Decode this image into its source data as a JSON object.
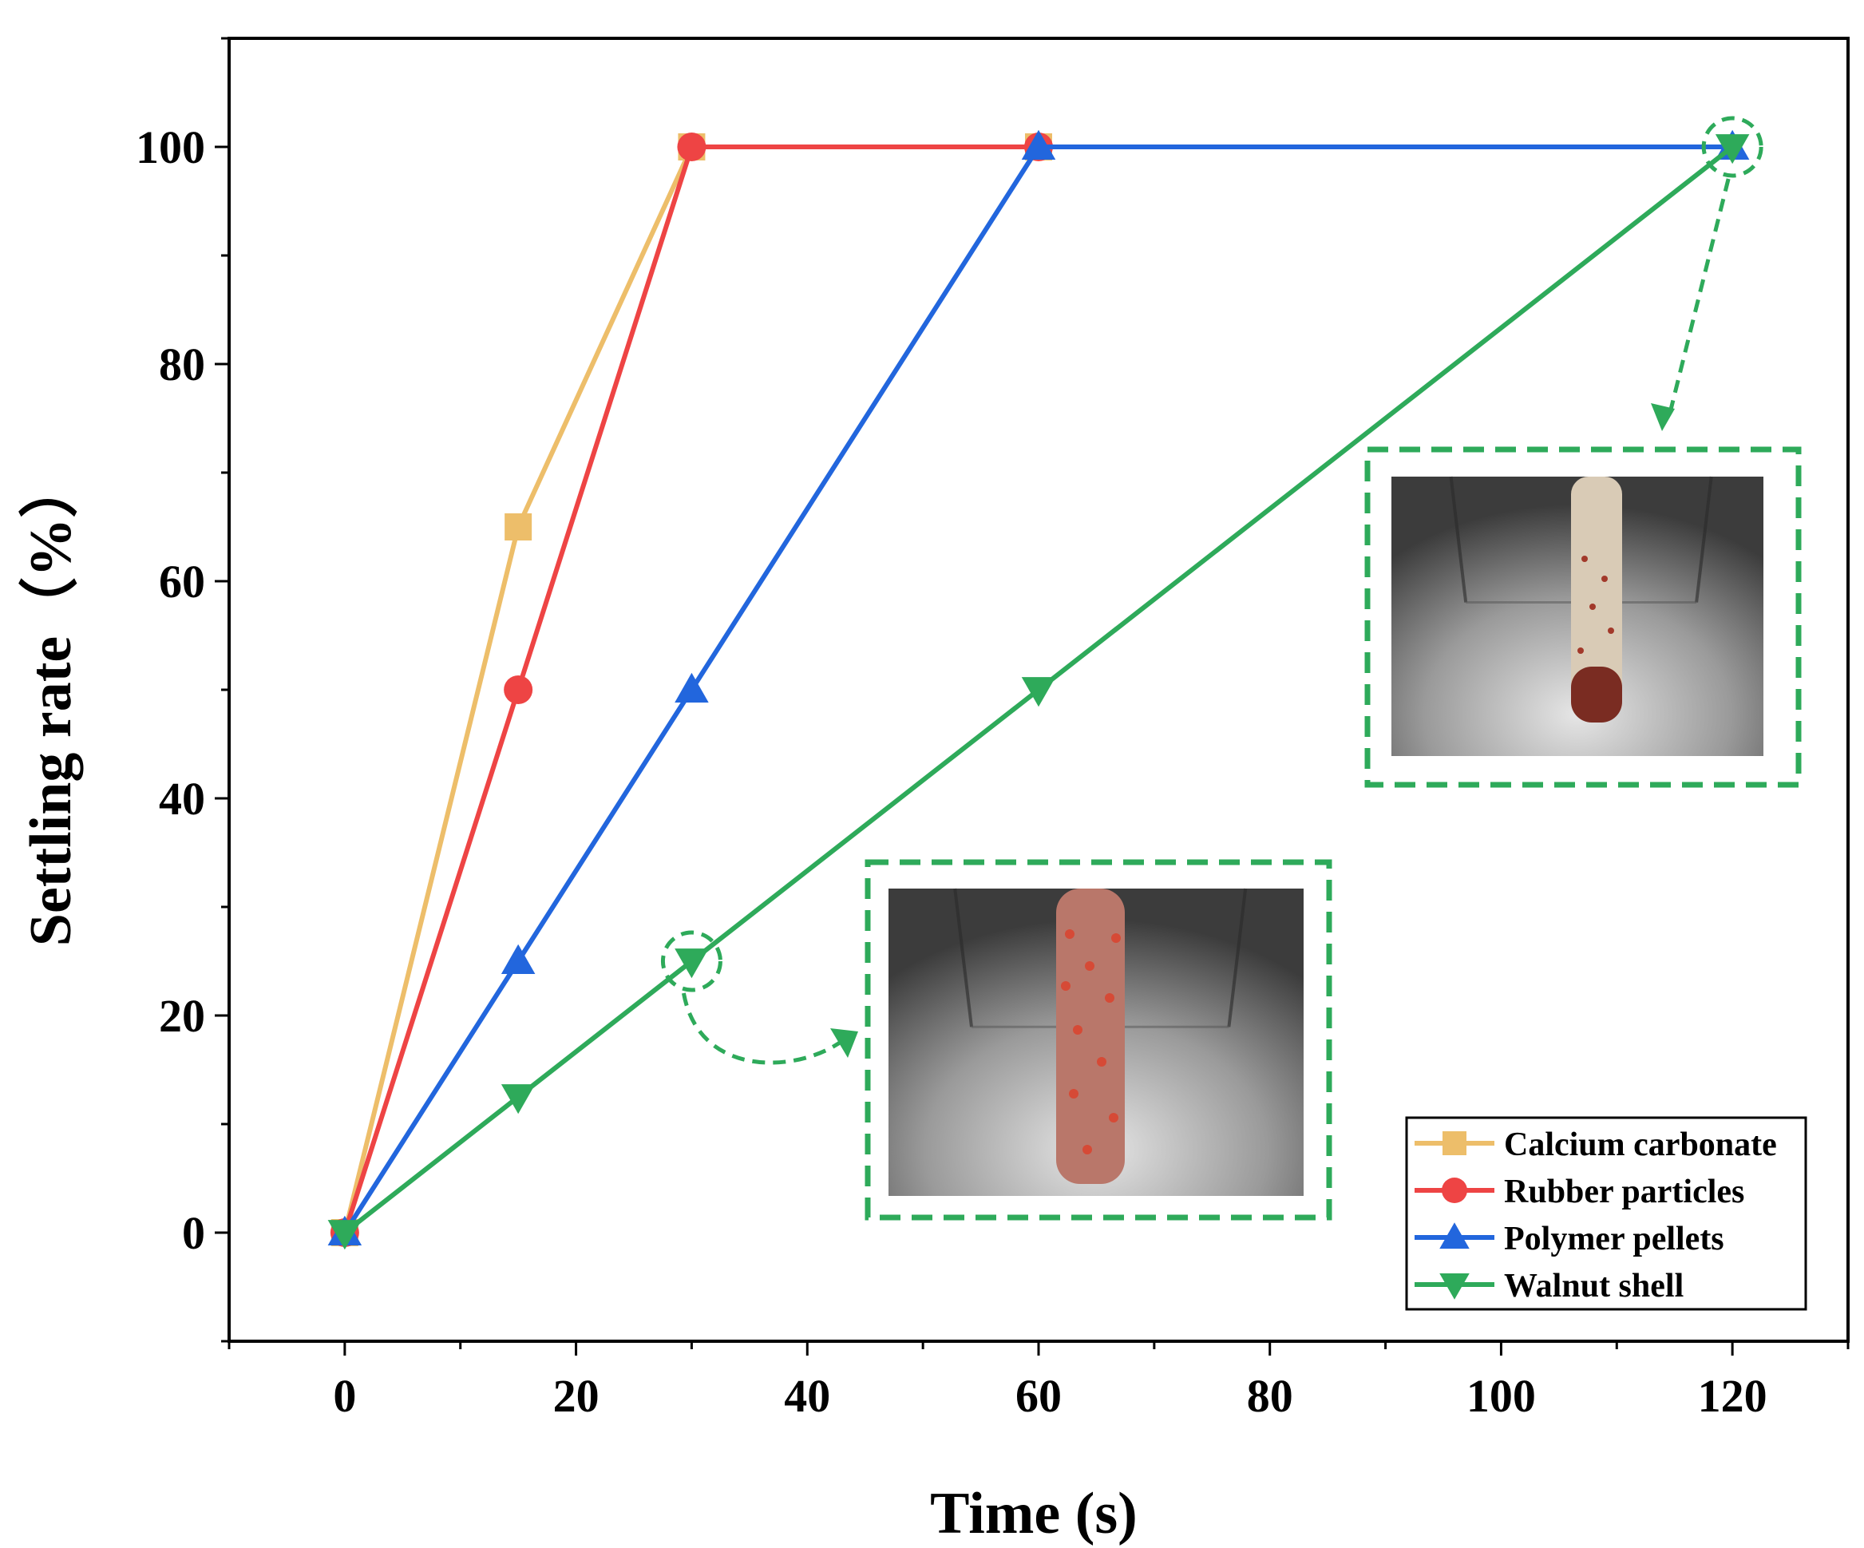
{
  "chart_data": {
    "type": "line",
    "xlabel": "Time (s)",
    "ylabel": "Settling rate（%）",
    "xlim": [
      -10,
      130
    ],
    "ylim": [
      -10,
      110
    ],
    "x_ticks": [
      0,
      20,
      40,
      60,
      80,
      100,
      120
    ],
    "y_ticks": [
      0,
      20,
      40,
      60,
      80,
      100
    ],
    "grid": false,
    "legend_position": "bottom-right",
    "series": [
      {
        "name": "Calcium carbonate",
        "color": "#EDBE6A",
        "marker": "square",
        "x": [
          0,
          15,
          30,
          60
        ],
        "y": [
          0,
          65,
          100,
          100
        ]
      },
      {
        "name": "Rubber particles",
        "color": "#EE4444",
        "marker": "circle",
        "x": [
          0,
          15,
          30,
          60
        ],
        "y": [
          0,
          50,
          100,
          100
        ]
      },
      {
        "name": "Polymer pellets",
        "color": "#2266DD",
        "marker": "triangle-up",
        "x": [
          0,
          15,
          30,
          60,
          120
        ],
        "y": [
          0,
          25,
          50,
          100,
          100
        ]
      },
      {
        "name": "Walnut shell",
        "color": "#2EAA5A",
        "marker": "triangle-down",
        "x": [
          0,
          15,
          30,
          60,
          120
        ],
        "y": [
          0,
          12.5,
          25,
          50,
          100
        ]
      }
    ],
    "annotations": [
      {
        "type": "highlight-circle",
        "target_x": 30,
        "target_y": 25,
        "inset": "inset-30s"
      },
      {
        "type": "highlight-circle",
        "target_x": 120,
        "target_y": 100,
        "inset": "inset-120s"
      }
    ]
  }
}
